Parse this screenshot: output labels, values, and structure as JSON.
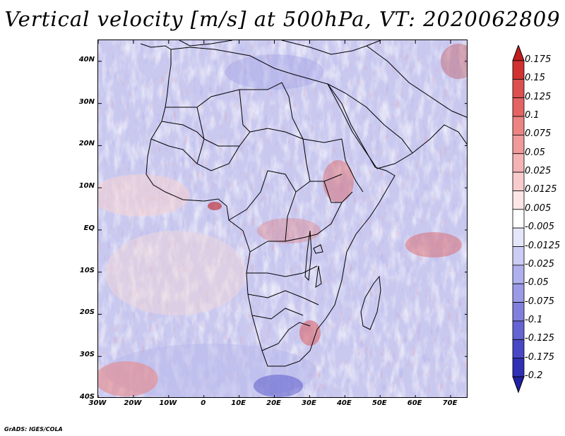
{
  "title": "Vertical velocity [m/s] at 500hPa, VT: 2020062809",
  "footer": "GrADS: IGES/COLA",
  "map": {
    "variable": "Vertical velocity",
    "units": "m/s",
    "level": "500hPa",
    "valid_time": "2020062809",
    "lon_range": [
      -30,
      75
    ],
    "lat_range": [
      -40,
      45
    ]
  },
  "axes": {
    "lat_labels": [
      {
        "lat": 40,
        "text": "40N"
      },
      {
        "lat": 30,
        "text": "30N"
      },
      {
        "lat": 20,
        "text": "20N"
      },
      {
        "lat": 10,
        "text": "10N"
      },
      {
        "lat": 0,
        "text": "EQ"
      },
      {
        "lat": -10,
        "text": "10S"
      },
      {
        "lat": -20,
        "text": "20S"
      },
      {
        "lat": -30,
        "text": "30S"
      },
      {
        "lat": -40,
        "text": "40S"
      }
    ],
    "lon_labels": [
      {
        "lon": -30,
        "text": "30W"
      },
      {
        "lon": -20,
        "text": "20W"
      },
      {
        "lon": -10,
        "text": "10W"
      },
      {
        "lon": 0,
        "text": "0"
      },
      {
        "lon": 10,
        "text": "10E"
      },
      {
        "lon": 20,
        "text": "20E"
      },
      {
        "lon": 30,
        "text": "30E"
      },
      {
        "lon": 40,
        "text": "40E"
      },
      {
        "lon": 50,
        "text": "50E"
      },
      {
        "lon": 60,
        "text": "60E"
      },
      {
        "lon": 70,
        "text": "70E"
      }
    ]
  },
  "colorbar": {
    "labels": [
      "0.175",
      "0.15",
      "0.125",
      "0.1",
      "0.075",
      "0.05",
      "0.025",
      "0.0125",
      "0.005",
      "-0.005",
      "-0.0125",
      "-0.025",
      "-0.05",
      "-0.075",
      "-0.1",
      "-0.125",
      "-0.175",
      "-0.2"
    ],
    "colors": [
      "#c01e1e",
      "#d03232",
      "#dc5050",
      "#e46464",
      "#ec8484",
      "#f09a9a",
      "#f4b4b4",
      "#f8cccc",
      "#fce6e6",
      "#ffffff",
      "#e6e6fa",
      "#ccccf4",
      "#b0b0ee",
      "#9a9ae6",
      "#8080dc",
      "#6464d2",
      "#4848c4",
      "#3030b4",
      "#2020a0"
    ]
  },
  "colors": {
    "positive": "#dc5050",
    "negative": "#6464d2",
    "background": "#ffffff"
  }
}
